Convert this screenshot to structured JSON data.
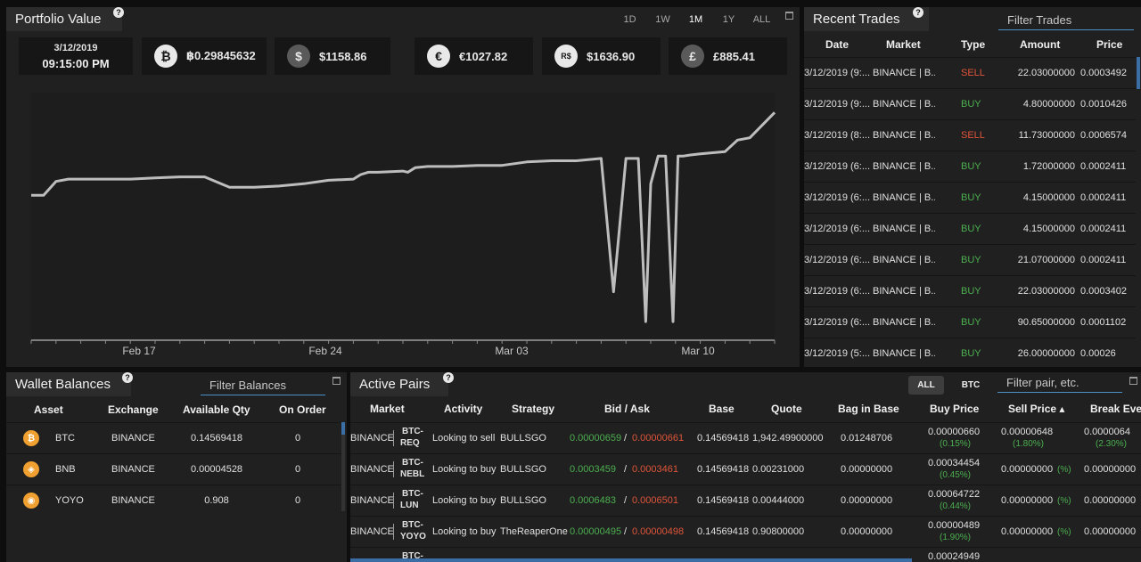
{
  "portfolio": {
    "title": "Portfolio Value",
    "ranges": [
      {
        "label": "1D",
        "active": false
      },
      {
        "label": "1W",
        "active": false
      },
      {
        "label": "1M",
        "active": true
      },
      {
        "label": "1Y",
        "active": false
      },
      {
        "label": "ALL",
        "active": false
      }
    ],
    "date": "3/12/2019",
    "time": "09:15:00 PM",
    "values": [
      {
        "icon": "bitcoin-icon",
        "glyph": "₿",
        "value": "฿0.29845632"
      },
      {
        "icon": "dollar-icon",
        "glyph": "$",
        "value": "$1158.86"
      },
      {
        "icon": "euro-icon",
        "glyph": "€",
        "value": "€1027.82"
      },
      {
        "icon": "real-icon",
        "glyph": "R$",
        "value": "$1636.90"
      },
      {
        "icon": "pound-icon",
        "glyph": "£",
        "value": "£885.41"
      }
    ]
  },
  "chart_data": {
    "type": "line",
    "title": "",
    "xlabel": "",
    "ylabel": "",
    "x_tick_labels": [
      "Feb 17",
      "Feb 24",
      "Mar 03",
      "Mar 10"
    ],
    "grid": false,
    "series": [
      {
        "name": "",
        "color": "#bdbdbd",
        "x": [
          0,
          0.5,
          1,
          1.5,
          2,
          3,
          4,
          5,
          6,
          7,
          8,
          9,
          10,
          11,
          12,
          13,
          13.3,
          13.6,
          14,
          15,
          15.2,
          15.5,
          16,
          17,
          18,
          19,
          20,
          21,
          22,
          23,
          23.5,
          24,
          24.5,
          24.8,
          25,
          25.3,
          25.6,
          25.9,
          26.1,
          26.3,
          26.6,
          27,
          28,
          28.5,
          29,
          30
        ],
        "values": [
          1.0,
          1.0,
          1.06,
          1.07,
          1.07,
          1.07,
          1.07,
          1.075,
          1.08,
          1.08,
          1.035,
          1.035,
          1.04,
          1.05,
          1.065,
          1.07,
          1.09,
          1.1,
          1.1,
          1.105,
          1.1,
          1.12,
          1.125,
          1.125,
          1.13,
          1.13,
          1.145,
          1.15,
          1.15,
          1.16,
          0.58,
          1.16,
          1.16,
          0.45,
          1.05,
          1.17,
          1.17,
          0.45,
          1.17,
          1.17,
          1.175,
          1.18,
          1.19,
          1.24,
          1.25,
          1.36
        ]
      }
    ]
  },
  "trades": {
    "title": "Recent Trades",
    "filter_placeholder": "Filter Trades",
    "headers": [
      "Date",
      "Market",
      "Type",
      "Amount",
      "Price"
    ],
    "rows": [
      {
        "date": "3/12/2019 (9:...",
        "market": "BINANCE | B...",
        "type": "SELL",
        "amount": "22.03000000",
        "price": "0.0003492"
      },
      {
        "date": "3/12/2019 (9:...",
        "market": "BINANCE | B...",
        "type": "BUY",
        "amount": "4.80000000",
        "price": "0.0010426"
      },
      {
        "date": "3/12/2019 (8:...",
        "market": "BINANCE | B...",
        "type": "SELL",
        "amount": "11.73000000",
        "price": "0.0006574"
      },
      {
        "date": "3/12/2019 (6:...",
        "market": "BINANCE | B...",
        "type": "BUY",
        "amount": "1.72000000",
        "price": "0.0002411"
      },
      {
        "date": "3/12/2019 (6:...",
        "market": "BINANCE | B...",
        "type": "BUY",
        "amount": "4.15000000",
        "price": "0.0002411"
      },
      {
        "date": "3/12/2019 (6:...",
        "market": "BINANCE | B...",
        "type": "BUY",
        "amount": "4.15000000",
        "price": "0.0002411"
      },
      {
        "date": "3/12/2019 (6:...",
        "market": "BINANCE | B...",
        "type": "BUY",
        "amount": "21.07000000",
        "price": "0.0002411"
      },
      {
        "date": "3/12/2019 (6:...",
        "market": "BINANCE | B...",
        "type": "BUY",
        "amount": "22.03000000",
        "price": "0.0003402"
      },
      {
        "date": "3/12/2019 (6:...",
        "market": "BINANCE | B...",
        "type": "BUY",
        "amount": "90.65000000",
        "price": "0.0001102"
      },
      {
        "date": "3/12/2019 (5:...",
        "market": "BINANCE | B...",
        "type": "BUY",
        "amount": "26.00000000",
        "price": "0.00026"
      }
    ]
  },
  "wallet": {
    "title": "Wallet Balances",
    "filter_placeholder": "Filter Balances",
    "headers": [
      "Asset",
      "Exchange",
      "Available Qty",
      "On Order"
    ],
    "rows": [
      {
        "asset": "BTC",
        "exchange": "BINANCE",
        "qty": "0.14569418",
        "on_order": "0",
        "glyph": "₿"
      },
      {
        "asset": "BNB",
        "exchange": "BINANCE",
        "qty": "0.00004528",
        "on_order": "0",
        "glyph": "◈"
      },
      {
        "asset": "YOYO",
        "exchange": "BINANCE",
        "qty": "0.908",
        "on_order": "0",
        "glyph": "◉"
      }
    ]
  },
  "pairs": {
    "title": "Active Pairs",
    "toggle_all": "ALL",
    "toggle_btc": "BTC",
    "filter_placeholder": "Filter pair, etc.",
    "headers": [
      "Market",
      "Activity",
      "Strategy",
      "Bid / Ask",
      "Base",
      "Quote",
      "Bag in Base",
      "Buy Price",
      "Sell Price ▴",
      "Break Eve"
    ],
    "rows": [
      {
        "exchange": "BINANCE",
        "pair1": "BTC-",
        "pair2": "REQ",
        "activity": "Looking to sell",
        "strategy": "BULLSGO",
        "bid": "0.00000659",
        "ask": "0.00000661",
        "base": "0.14569418",
        "quote": "1,942.49900000",
        "bag": "0.01248706",
        "buy_price": "0.00000660",
        "buy_pct": "(0.15%)",
        "sell_price": "0.00000648",
        "sell_pct": "(1.80%)",
        "break_even": "0.0000064",
        "break_pct": "(2.30%)"
      },
      {
        "exchange": "BINANCE",
        "pair1": "BTC-",
        "pair2": "NEBL",
        "activity": "Looking to buy",
        "strategy": "BULLSGO",
        "bid": "0.0003459",
        "ask": "0.0003461",
        "base": "0.14569418",
        "quote": "0.00231000",
        "bag": "0.00000000",
        "buy_price": "0.00034454",
        "buy_pct": "(0.45%)",
        "sell_price": "0.00000000",
        "sell_pct": "(%)",
        "break_even": "0.00000000",
        "break_pct": ""
      },
      {
        "exchange": "BINANCE",
        "pair1": "BTC-",
        "pair2": "LUN",
        "activity": "Looking to buy",
        "strategy": "BULLSGO",
        "bid": "0.0006483",
        "ask": "0.0006501",
        "base": "0.14569418",
        "quote": "0.00444000",
        "bag": "0.00000000",
        "buy_price": "0.00064722",
        "buy_pct": "(0.44%)",
        "sell_price": "0.00000000",
        "sell_pct": "(%)",
        "break_even": "0.00000000",
        "break_pct": ""
      },
      {
        "exchange": "BINANCE",
        "pair1": "BTC-",
        "pair2": "YOYO",
        "activity": "Looking to buy",
        "strategy": "TheReaperOne",
        "bid": "0.00000495",
        "ask": "0.00000498",
        "base": "0.14569418",
        "quote": "0.90800000",
        "bag": "0.00000000",
        "buy_price": "0.00000489",
        "buy_pct": "(1.90%)",
        "sell_price": "0.00000000",
        "sell_pct": "(%)",
        "break_even": "0.00000000",
        "break_pct": ""
      },
      {
        "exchange": "",
        "pair1": "BTC-",
        "pair2": "",
        "activity": "",
        "strategy": "",
        "bid": "",
        "ask": "",
        "base": "",
        "quote": "",
        "bag": "",
        "buy_price": "0.00024949",
        "buy_pct": "",
        "sell_price": "",
        "sell_pct": "",
        "break_even": "",
        "break_pct": ""
      }
    ]
  }
}
